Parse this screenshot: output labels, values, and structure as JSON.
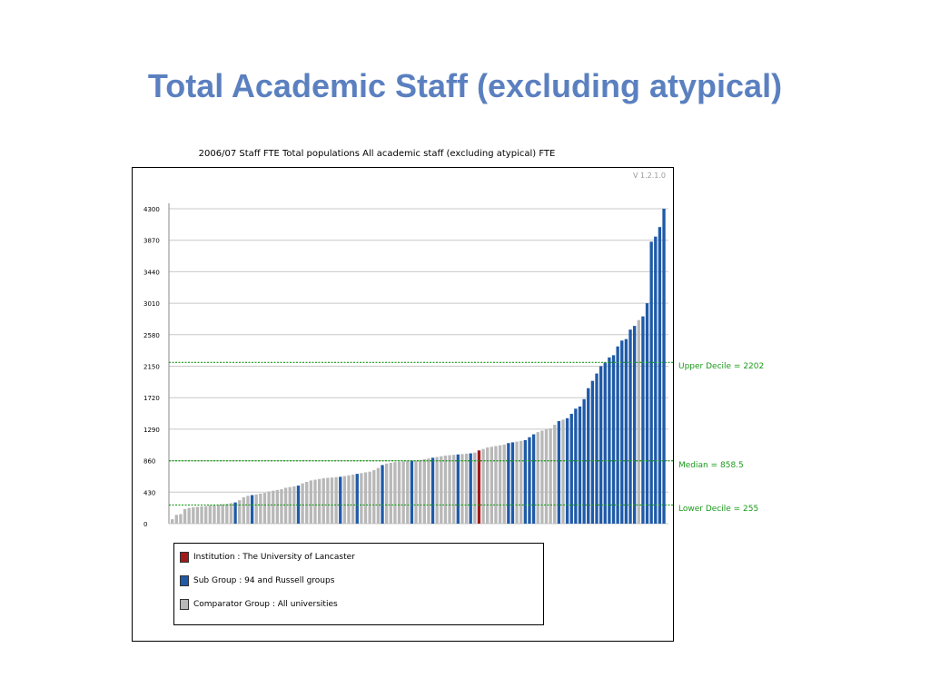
{
  "slide": {
    "title": "Total Academic Staff (excluding atypical)"
  },
  "chart_data": {
    "type": "bar",
    "title": "2006/07 Staff FTE Total populations All academic staff (excluding atypical) FTE",
    "version": "V 1.2.1.0",
    "xlabel": "",
    "ylabel": "",
    "ylim": [
      0,
      4300
    ],
    "yticks": [
      "4300",
      "3870",
      "3440",
      "3010",
      "2580",
      "2150",
      "1720",
      "1290",
      "860",
      "430",
      "0"
    ],
    "grid": true,
    "colors": {
      "institution": "#a01a1a",
      "subgroup": "#1f5aa8",
      "comparator": "#b8b8b8",
      "reference": "#1a9a1a"
    },
    "reference_lines": [
      {
        "label": "Upper Decile = 2202",
        "value": 2202
      },
      {
        "label": "Median = 858.5",
        "value": 858.5
      },
      {
        "label": "Lower Decile = 255",
        "value": 255
      }
    ],
    "legend": [
      {
        "key": "institution",
        "label": "Institution : The University of Lancaster"
      },
      {
        "key": "subgroup",
        "label": "Sub Group : 94 and Russell groups"
      },
      {
        "key": "comparator",
        "label": "Comparator Group : All universities"
      }
    ],
    "values": [
      60,
      120,
      130,
      200,
      215,
      225,
      230,
      235,
      240,
      250,
      255,
      260,
      265,
      270,
      280,
      290,
      320,
      360,
      380,
      390,
      400,
      410,
      420,
      440,
      450,
      460,
      470,
      490,
      500,
      510,
      520,
      550,
      570,
      590,
      600,
      610,
      620,
      625,
      630,
      635,
      640,
      650,
      660,
      670,
      680,
      690,
      700,
      710,
      730,
      760,
      800,
      820,
      830,
      840,
      845,
      850,
      855,
      858,
      860,
      870,
      880,
      890,
      900,
      910,
      920,
      930,
      935,
      940,
      945,
      950,
      955,
      960,
      970,
      1000,
      1020,
      1040,
      1050,
      1060,
      1070,
      1080,
      1100,
      1110,
      1120,
      1130,
      1140,
      1180,
      1220,
      1250,
      1270,
      1290,
      1300,
      1350,
      1400,
      1420,
      1440,
      1500,
      1570,
      1600,
      1700,
      1850,
      1950,
      2050,
      2150,
      2200,
      2270,
      2300,
      2420,
      2500,
      2520,
      2650,
      2700,
      2780,
      2830,
      3010,
      3850,
      3920,
      4050,
      4300
    ],
    "groups": [
      "c",
      "c",
      "c",
      "c",
      "c",
      "c",
      "c",
      "c",
      "c",
      "c",
      "c",
      "c",
      "c",
      "c",
      "c",
      "s",
      "c",
      "c",
      "c",
      "s",
      "c",
      "c",
      "c",
      "c",
      "c",
      "c",
      "c",
      "c",
      "c",
      "c",
      "s",
      "c",
      "c",
      "c",
      "c",
      "c",
      "c",
      "c",
      "c",
      "c",
      "s",
      "c",
      "c",
      "c",
      "s",
      "c",
      "c",
      "c",
      "c",
      "c",
      "s",
      "c",
      "c",
      "c",
      "c",
      "c",
      "c",
      "s",
      "c",
      "c",
      "c",
      "c",
      "s",
      "c",
      "c",
      "c",
      "c",
      "c",
      "s",
      "c",
      "c",
      "s",
      "c",
      "i",
      "c",
      "c",
      "c",
      "c",
      "c",
      "c",
      "s",
      "s",
      "c",
      "c",
      "s",
      "s",
      "s",
      "c",
      "c",
      "c",
      "c",
      "c",
      "s",
      "c",
      "s",
      "s",
      "s",
      "s",
      "s",
      "s",
      "s",
      "s",
      "s",
      "s",
      "s",
      "s",
      "s",
      "s",
      "s",
      "s",
      "s",
      "c",
      "s",
      "s",
      "s",
      "s",
      "s",
      "s"
    ]
  }
}
